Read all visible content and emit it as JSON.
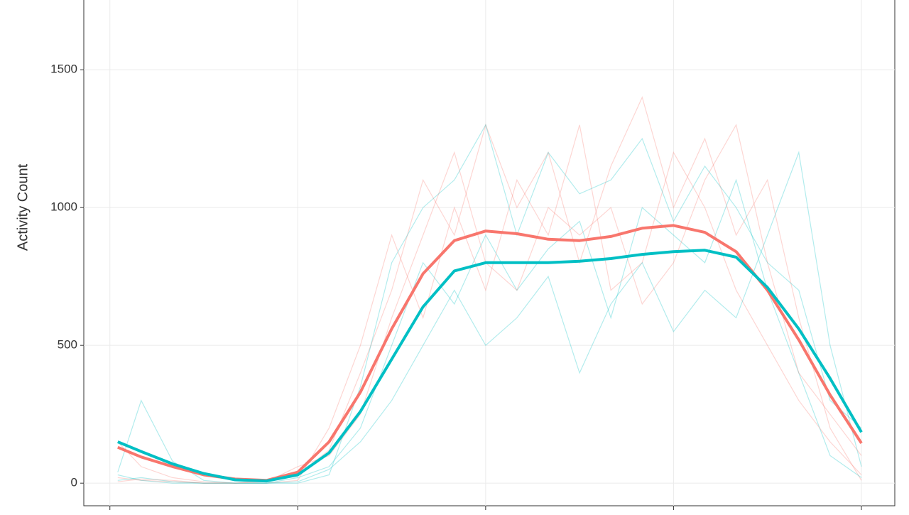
{
  "chart_data": {
    "type": "line",
    "y_label": "Activity Count",
    "x": [
      15,
      60,
      120,
      180,
      240,
      300,
      360,
      420,
      480,
      540,
      600,
      660,
      720,
      780,
      840,
      900,
      960,
      1020,
      1080,
      1140,
      1200,
      1260,
      1320,
      1380,
      1440
    ],
    "xlim": [
      -50,
      1504
    ],
    "xticks": [
      0,
      360,
      720,
      1080,
      1440
    ],
    "ylim": [
      -82,
      1753
    ],
    "yticks": [
      0,
      500,
      1000,
      1500
    ],
    "grid": true,
    "series": [
      {
        "color": "#f8766d",
        "values": [
          20,
          10,
          5,
          0,
          0,
          10,
          30,
          120,
          400,
          700,
          1100,
          900,
          1300,
          1000,
          1200,
          800,
          1150,
          1400,
          1000,
          1250,
          900,
          1100,
          600,
          200,
          10
        ]
      },
      {
        "color": "#00bfc4",
        "values": [
          40,
          300,
          80,
          10,
          0,
          0,
          20,
          60,
          200,
          500,
          800,
          650,
          900,
          700,
          850,
          950,
          600,
          1000,
          900,
          800,
          1100,
          700,
          400,
          100,
          20
        ]
      },
      {
        "color": "#f8766d",
        "values": [
          150,
          60,
          20,
          5,
          0,
          0,
          10,
          200,
          500,
          900,
          600,
          1000,
          700,
          1100,
          900,
          1300,
          700,
          800,
          1200,
          1000,
          700,
          500,
          300,
          150,
          30
        ]
      },
      {
        "color": "#00bfc4",
        "values": [
          10,
          20,
          5,
          0,
          0,
          0,
          5,
          50,
          150,
          300,
          500,
          700,
          500,
          600,
          750,
          400,
          650,
          800,
          550,
          700,
          600,
          900,
          1200,
          500,
          60
        ]
      },
      {
        "color": "#f8766d",
        "values": [
          5,
          15,
          10,
          0,
          0,
          5,
          60,
          100,
          250,
          600,
          900,
          1200,
          800,
          700,
          1000,
          900,
          1000,
          650,
          800,
          1100,
          1300,
          800,
          400,
          250,
          100
        ]
      },
      {
        "color": "#00bfc4",
        "values": [
          30,
          10,
          0,
          0,
          0,
          0,
          0,
          30,
          350,
          800,
          1000,
          1100,
          1300,
          900,
          1200,
          1050,
          1100,
          1250,
          950,
          1150,
          1000,
          800,
          700,
          300,
          200
        ]
      }
    ],
    "smooth_series": [
      {
        "color": "#f8766d",
        "values": [
          130,
          95,
          60,
          30,
          15,
          10,
          40,
          150,
          330,
          560,
          760,
          880,
          915,
          905,
          885,
          880,
          895,
          925,
          935,
          910,
          840,
          700,
          520,
          320,
          145
        ]
      },
      {
        "color": "#00bfc4",
        "values": [
          150,
          115,
          70,
          35,
          12,
          8,
          30,
          110,
          260,
          450,
          640,
          770,
          800,
          800,
          800,
          805,
          815,
          830,
          840,
          845,
          820,
          710,
          560,
          380,
          185
        ]
      }
    ]
  }
}
